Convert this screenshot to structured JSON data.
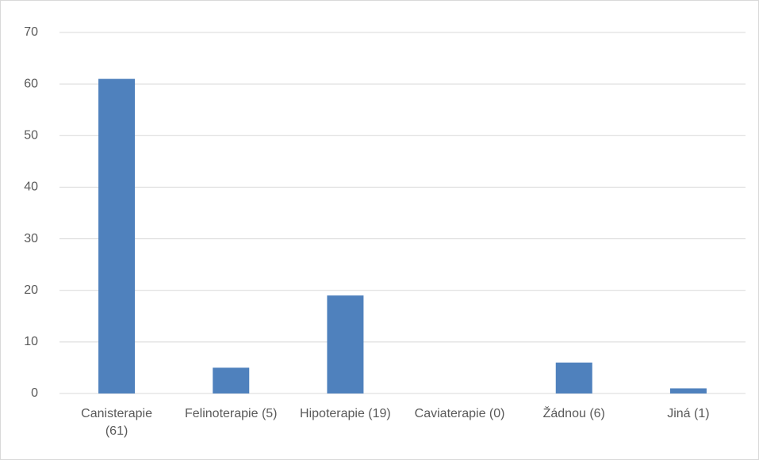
{
  "chart_data": {
    "type": "bar",
    "categories": [
      "Canisterapie (61)",
      "Felinoterapie (5)",
      "Hipoterapie (19)",
      "Caviaterapie (0)",
      "Žádnou (6)",
      "Jiná (1)"
    ],
    "values": [
      61,
      5,
      19,
      0,
      6,
      1
    ],
    "color": "#4f81bd",
    "ylim": [
      0,
      70
    ],
    "yticks": [
      0,
      10,
      20,
      30,
      40,
      50,
      60,
      70
    ],
    "grid": true
  }
}
